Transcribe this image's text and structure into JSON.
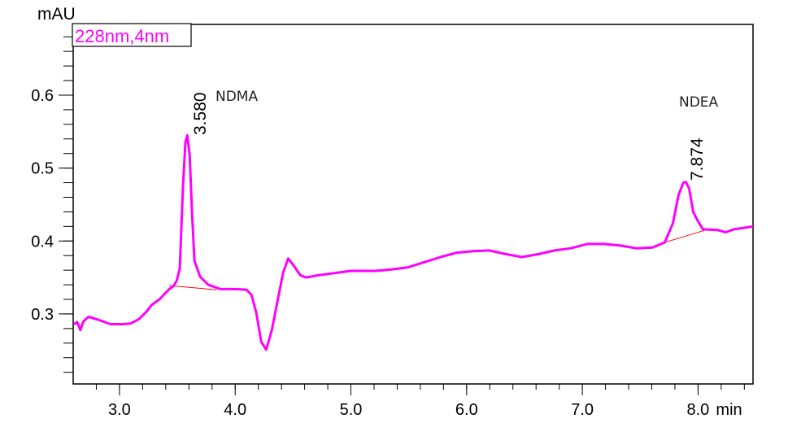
{
  "chart_data": {
    "type": "line",
    "title": "",
    "xlabel": "min",
    "ylabel": "mAU",
    "xlim": [
      2.6,
      8.475
    ],
    "ylim": [
      0.204,
      0.697
    ],
    "x_ticks": [
      3.0,
      4.0,
      5.0,
      6.0,
      7.0,
      8.0
    ],
    "x_tick_labels": [
      "3.0",
      "4.0",
      "5.0",
      "6.0",
      "7.0",
      "8.0"
    ],
    "x_minor_step": 0.2,
    "y_ticks": [
      0.3,
      0.4,
      0.5,
      0.6
    ],
    "y_tick_labels": [
      "0.3",
      "0.4",
      "0.5",
      "0.6"
    ],
    "y_minor_step": 0.02,
    "grid": false,
    "legend": {
      "label": "228nm,4nm",
      "placement": "top-left",
      "color": "#ff00ff"
    },
    "series": [
      {
        "name": "228nm,4nm",
        "color": "#ff00ff",
        "points": [
          [
            2.606,
            0.286
          ],
          [
            2.634,
            0.289
          ],
          [
            2.662,
            0.278
          ],
          [
            2.69,
            0.29
          ],
          [
            2.732,
            0.296
          ],
          [
            2.817,
            0.292
          ],
          [
            2.923,
            0.286
          ],
          [
            3.028,
            0.286
          ],
          [
            3.099,
            0.287
          ],
          [
            3.169,
            0.293
          ],
          [
            3.239,
            0.304
          ],
          [
            3.275,
            0.312
          ],
          [
            3.345,
            0.32
          ],
          [
            3.43,
            0.334
          ],
          [
            3.465,
            0.338
          ],
          [
            3.493,
            0.345
          ],
          [
            3.521,
            0.362
          ],
          [
            3.549,
            0.474
          ],
          [
            3.57,
            0.535
          ],
          [
            3.585,
            0.545
          ],
          [
            3.606,
            0.519
          ],
          [
            3.627,
            0.44
          ],
          [
            3.648,
            0.373
          ],
          [
            3.697,
            0.351
          ],
          [
            3.768,
            0.34
          ],
          [
            3.873,
            0.334
          ],
          [
            4.014,
            0.334
          ],
          [
            4.099,
            0.333
          ],
          [
            4.141,
            0.326
          ],
          [
            4.183,
            0.301
          ],
          [
            4.225,
            0.262
          ],
          [
            4.268,
            0.251
          ],
          [
            4.317,
            0.278
          ],
          [
            4.366,
            0.318
          ],
          [
            4.415,
            0.357
          ],
          [
            4.458,
            0.376
          ],
          [
            4.507,
            0.366
          ],
          [
            4.563,
            0.353
          ],
          [
            4.613,
            0.35
          ],
          [
            4.718,
            0.353
          ],
          [
            4.859,
            0.356
          ],
          [
            5.0,
            0.359
          ],
          [
            5.211,
            0.359
          ],
          [
            5.352,
            0.361
          ],
          [
            5.493,
            0.364
          ],
          [
            5.634,
            0.371
          ],
          [
            5.775,
            0.378
          ],
          [
            5.915,
            0.384
          ],
          [
            6.056,
            0.386
          ],
          [
            6.197,
            0.387
          ],
          [
            6.338,
            0.382
          ],
          [
            6.479,
            0.378
          ],
          [
            6.62,
            0.382
          ],
          [
            6.761,
            0.387
          ],
          [
            6.901,
            0.39
          ],
          [
            7.042,
            0.396
          ],
          [
            7.183,
            0.396
          ],
          [
            7.324,
            0.394
          ],
          [
            7.465,
            0.39
          ],
          [
            7.606,
            0.391
          ],
          [
            7.711,
            0.398
          ],
          [
            7.782,
            0.424
          ],
          [
            7.831,
            0.463
          ],
          [
            7.873,
            0.48
          ],
          [
            7.894,
            0.481
          ],
          [
            7.923,
            0.472
          ],
          [
            7.958,
            0.44
          ],
          [
            7.993,
            0.429
          ],
          [
            8.042,
            0.416
          ],
          [
            8.169,
            0.415
          ],
          [
            8.239,
            0.412
          ],
          [
            8.31,
            0.416
          ],
          [
            8.394,
            0.418
          ],
          [
            8.475,
            0.42
          ]
        ]
      }
    ],
    "baselines": [
      {
        "color": "#ff0000",
        "points": [
          [
            3.43,
            0.339
          ],
          [
            3.838,
            0.333
          ]
        ]
      },
      {
        "color": "#ff0000",
        "points": [
          [
            7.711,
            0.398
          ],
          [
            8.085,
            0.416
          ]
        ]
      }
    ],
    "peaks": [
      {
        "retention_time": "3.580",
        "name": "NDMA",
        "t": 3.58,
        "y": 0.545
      },
      {
        "retention_time": "7.874",
        "name": "NDEA",
        "t": 7.874,
        "y": 0.481
      }
    ]
  }
}
